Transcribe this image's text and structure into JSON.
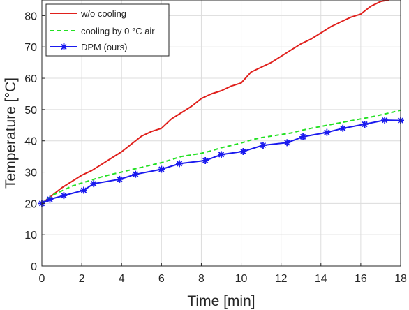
{
  "chart_data": {
    "type": "line",
    "xlabel": "Time [min]",
    "ylabel": "Temperature [°C]",
    "xlim": [
      0,
      18
    ],
    "ylim": [
      0,
      85
    ],
    "xticks": [
      "0",
      "2",
      "4",
      "6",
      "8",
      "10",
      "12",
      "14",
      "16",
      "18"
    ],
    "yticks": [
      "0",
      "10",
      "20",
      "30",
      "40",
      "50",
      "60",
      "70",
      "80"
    ],
    "grid": true,
    "legend_position": "top-left",
    "series": [
      {
        "name": "w/o cooling",
        "color": "#e0201c",
        "style": "solid",
        "marker": "none",
        "x": [
          0,
          0.5,
          1,
          1.5,
          2,
          2.5,
          3,
          3.5,
          4,
          4.5,
          5,
          5.5,
          6,
          6.5,
          7,
          7.5,
          8,
          8.5,
          9,
          9.5,
          10,
          10.5,
          11,
          11.5,
          12,
          12.5,
          13,
          13.5,
          14,
          14.5,
          15,
          15.5,
          16,
          16.5,
          17,
          17.4
        ],
        "values": [
          20,
          22.5,
          25,
          27,
          29,
          30.5,
          32.5,
          34.5,
          36.5,
          39,
          41.5,
          43,
          44,
          47,
          49,
          51,
          53.5,
          55,
          56,
          57.5,
          58.5,
          62,
          63.5,
          65,
          67,
          69,
          71,
          72.5,
          74.5,
          76.5,
          78,
          79.5,
          80.5,
          83,
          84.5,
          85
        ]
      },
      {
        "name": "cooling by 0 °C air",
        "color": "#22e022",
        "style": "dashed",
        "marker": "none",
        "x": [
          0,
          0.5,
          1,
          1.5,
          2,
          2.5,
          3,
          3.5,
          4,
          4.5,
          5,
          5.5,
          6,
          6.5,
          7,
          7.5,
          8,
          8.5,
          9,
          9.5,
          10,
          10.5,
          11,
          11.5,
          12,
          12.5,
          13,
          13.5,
          14,
          14.5,
          15,
          15.5,
          16,
          16.5,
          17,
          17.5,
          18
        ],
        "values": [
          20,
          22.5,
          24,
          25.5,
          26.5,
          27.5,
          28.5,
          29.3,
          30,
          30.8,
          31.5,
          32.3,
          33,
          34,
          35,
          35.5,
          36,
          36.8,
          37.8,
          38.5,
          39.3,
          40.3,
          41,
          41.5,
          42,
          42.5,
          43.3,
          44,
          44.6,
          45.2,
          45.8,
          46.4,
          47,
          47.6,
          48.3,
          49,
          49.8
        ]
      },
      {
        "name": "DPM (ours)",
        "color": "#1a1aee",
        "style": "solid",
        "marker": "asterisk",
        "x": [
          0,
          0.4,
          1.1,
          2.1,
          2.6,
          3.9,
          4.7,
          6.0,
          6.9,
          8.2,
          9.0,
          10.1,
          11.1,
          12.3,
          13.1,
          14.3,
          15.1,
          16.2,
          17.2,
          18
        ],
        "values": [
          20,
          21.3,
          22.5,
          24.2,
          26.3,
          27.7,
          29.3,
          30.9,
          32.7,
          33.7,
          35.6,
          36.6,
          38.6,
          39.4,
          41.3,
          42.7,
          44,
          45.3,
          46.6,
          46.5
        ]
      }
    ]
  }
}
